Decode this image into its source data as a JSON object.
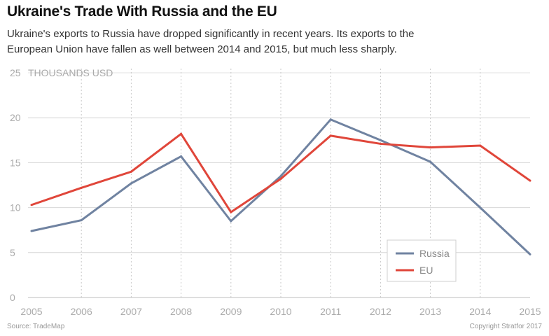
{
  "title": "Ukraine's Trade With Russia and the EU",
  "subtitle": "Ukraine's exports to Russia have dropped significantly in recent years. Its exports to the European Union have fallen as well between 2014 and 2015, but much less sharply.",
  "source": "Source: TradeMap",
  "copyright": "Copyright Stratfor 2017",
  "chart_data": {
    "type": "line",
    "x": [
      2005,
      2006,
      2007,
      2008,
      2009,
      2010,
      2011,
      2012,
      2013,
      2014,
      2015
    ],
    "x_tick_labels": [
      "2005",
      "2006",
      "2007",
      "2008",
      "2009",
      "2010",
      "2011",
      "2012",
      "2013",
      "2014",
      "2015"
    ],
    "ylabel": "THOUSANDS USD",
    "ylim": [
      0,
      25
    ],
    "y_ticks": [
      0,
      5,
      10,
      15,
      20,
      25
    ],
    "y_tick_labels": [
      "0",
      "5",
      "10",
      "15",
      "20",
      "25"
    ],
    "grid": true,
    "legend_position": "bottom-right",
    "series": [
      {
        "name": "Russia",
        "color": "#7083a1",
        "values": [
          7.4,
          8.6,
          12.7,
          15.7,
          8.5,
          13.5,
          19.8,
          17.5,
          15.1,
          10.0,
          4.8
        ]
      },
      {
        "name": "EU",
        "color": "#e0463a",
        "values": [
          10.3,
          12.2,
          14.0,
          18.2,
          9.5,
          13.2,
          18.0,
          17.1,
          16.7,
          16.9,
          13.0
        ]
      }
    ]
  }
}
